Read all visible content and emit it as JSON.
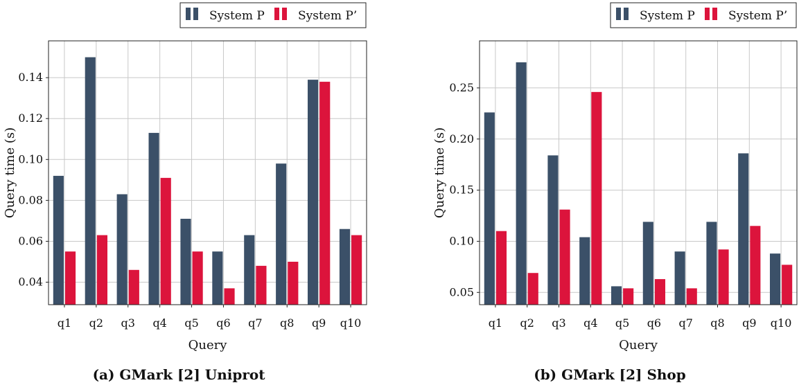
{
  "colors": {
    "system_p": "#3b5068",
    "system_p_prime": "#dc143c",
    "grid": "#c8c8c8",
    "axis": "#222222"
  },
  "legend": {
    "series_1": "System P",
    "series_2": "System P’"
  },
  "chart_data": [
    {
      "type": "bar",
      "caption": "(a) GMark [2] Uniprot",
      "xlabel": "Query",
      "ylabel": "Query time (s)",
      "categories": [
        "q1",
        "q2",
        "q3",
        "q4",
        "q5",
        "q6",
        "q7",
        "q8",
        "q9",
        "q10"
      ],
      "ylim": [
        0.029,
        0.158
      ],
      "yticks": [
        0.04,
        0.06,
        0.08,
        0.1,
        0.12,
        0.14
      ],
      "ytick_labels": [
        "0.04",
        "0.06",
        "0.08",
        "0.10",
        "0.12",
        "0.14"
      ],
      "series": [
        {
          "name": "System P",
          "values": [
            0.092,
            0.15,
            0.083,
            0.113,
            0.071,
            0.055,
            0.063,
            0.098,
            0.139,
            0.066
          ]
        },
        {
          "name": "System P’",
          "values": [
            0.055,
            0.063,
            0.046,
            0.091,
            0.055,
            0.037,
            0.048,
            0.05,
            0.138,
            0.063
          ]
        }
      ]
    },
    {
      "type": "bar",
      "caption": "(b) GMark [2] Shop",
      "xlabel": "Query",
      "ylabel": "Query time (s)",
      "categories": [
        "q1",
        "q2",
        "q3",
        "q4",
        "q5",
        "q6",
        "q7",
        "q8",
        "q9",
        "q10"
      ],
      "ylim": [
        0.038,
        0.296
      ],
      "yticks": [
        0.05,
        0.1,
        0.15,
        0.2,
        0.25
      ],
      "ytick_labels": [
        "0.05",
        "0.10",
        "0.15",
        "0.20",
        "0.25"
      ],
      "series": [
        {
          "name": "System P",
          "values": [
            0.226,
            0.275,
            0.184,
            0.104,
            0.056,
            0.119,
            0.09,
            0.119,
            0.186,
            0.088
          ]
        },
        {
          "name": "System P’",
          "values": [
            0.11,
            0.069,
            0.131,
            0.246,
            0.054,
            0.063,
            0.054,
            0.092,
            0.115,
            0.077
          ]
        }
      ]
    }
  ]
}
